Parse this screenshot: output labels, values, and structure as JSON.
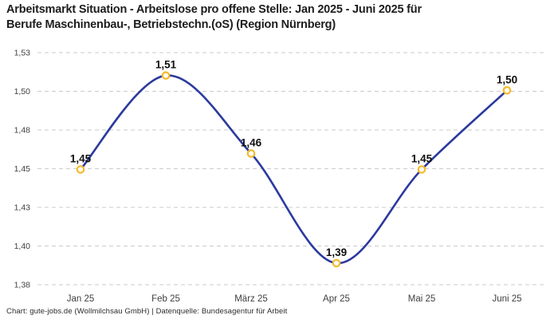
{
  "footer": "Chart: gute-jobs.de (Wollmilchsau GmbH) | Datenquelle: Bundesagentur für Arbeit",
  "chart_data": {
    "type": "line",
    "title": "Arbeitsmarkt Situation - Arbeitslose pro offene Stelle: Jan 2025 - Juni 2025 für\nBerufe Maschinenbau-, Betriebstechn.(oS) (Region Nürnberg)",
    "categories": [
      "Jan 25",
      "Feb 25",
      "März 25",
      "Apr 25",
      "Mai 25",
      "Juni 25"
    ],
    "values": [
      1.45,
      1.51,
      1.46,
      1.39,
      1.45,
      1.5
    ],
    "point_labels": [
      "1,45",
      "1,51",
      "1,46",
      "1,39",
      "1,45",
      "1,50"
    ],
    "plot_values": [
      1.4545,
      1.5152,
      1.4648,
      1.3939,
      1.4545,
      1.5056
    ],
    "y_ticks": [
      "1,53",
      "1,50",
      "1,48",
      "1,45",
      "1,43",
      "1,40",
      "1,38"
    ],
    "ylim": [
      1.38,
      1.53
    ],
    "xlabel": "",
    "ylabel": "",
    "grid": "horizontal-dashed",
    "legend": "none",
    "line_color": "#2b3a9e",
    "marker_color": "#f5ba29",
    "grid_color": "#cbcbcb",
    "axis_text_color": "#3f3f3f",
    "point_label_color": "#0f0f0f",
    "source": "Chart: gute-jobs.de (Wollmilchsau GmbH) | Datenquelle: Bundesagentur für Arbeit"
  }
}
